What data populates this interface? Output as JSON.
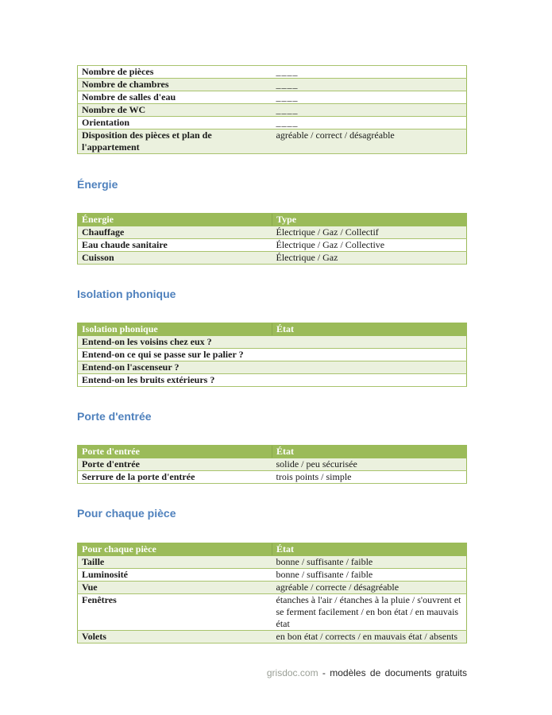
{
  "colors": {
    "table_header_green": "#9bbb59",
    "band_row_green": "#ebf1de",
    "border_green": "#9bbb59",
    "heading_blue": "#4f81bd",
    "footer_brand_gray": "#9a9f96"
  },
  "sections": [
    {
      "id": "details",
      "heading": null,
      "rows": [
        {
          "label": "Nombre de pièces",
          "value": "____"
        },
        {
          "label": "Nombre de chambres",
          "value": "____"
        },
        {
          "label": "Nombre de salles d'eau",
          "value": "____"
        },
        {
          "label": "Nombre de WC",
          "value": "____"
        },
        {
          "label": "Orientation",
          "value": "____"
        },
        {
          "label": "Disposition des pièces et plan de l'appartement",
          "value": "agréable / correct / désagréable"
        }
      ]
    },
    {
      "id": "energie",
      "heading": "Énergie",
      "header": {
        "label": "Énergie",
        "value": "Type"
      },
      "rows": [
        {
          "label": "Chauffage",
          "value": "Électrique / Gaz / Collectif"
        },
        {
          "label": "Eau chaude sanitaire",
          "value": "Électrique / Gaz / Collective"
        },
        {
          "label": "Cuisson",
          "value": "Électrique / Gaz"
        }
      ]
    },
    {
      "id": "isolation",
      "heading": "Isolation phonique",
      "header": {
        "label": "Isolation phonique",
        "value": "État"
      },
      "rows": [
        {
          "label": "Entend-on les voisins chez eux ?",
          "value": ""
        },
        {
          "label": "Entend-on ce qui se passe sur le palier ?",
          "value": ""
        },
        {
          "label": "Entend-on l'ascenseur ?",
          "value": ""
        },
        {
          "label": "Entend-on les bruits extérieurs ?",
          "value": ""
        }
      ]
    },
    {
      "id": "porte",
      "heading": "Porte d'entrée",
      "header": {
        "label": "Porte d'entrée",
        "value": "État"
      },
      "rows": [
        {
          "label": "Porte d'entrée",
          "value": "solide / peu sécurisée"
        },
        {
          "label": "Serrure de la porte d'entrée",
          "value": "trois points / simple"
        }
      ]
    },
    {
      "id": "piece",
      "heading": "Pour chaque pièce",
      "header": {
        "label": "Pour chaque pièce",
        "value": "État"
      },
      "rows": [
        {
          "label": "Taille",
          "value": "bonne / suffisante / faible"
        },
        {
          "label": "Luminosité",
          "value": "bonne / suffisante / faible"
        },
        {
          "label": "Vue",
          "value": "agréable / correcte / désagréable"
        },
        {
          "label": "Fenêtres",
          "value": "étanches à l'air / étanches à la pluie / s'ouvrent et se ferment facilement / en bon état / en mauvais état"
        },
        {
          "label": "Volets",
          "value": "en bon état / corrects / en mauvais état / absents"
        }
      ]
    }
  ],
  "footer": {
    "brand": "grisdoc.com",
    "tagline": "- modèles de documents gratuits"
  }
}
